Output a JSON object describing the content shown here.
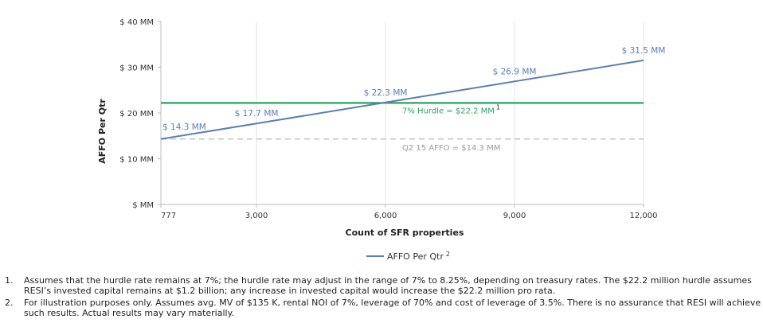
{
  "chart_data": {
    "type": "line",
    "title": "",
    "xlabel": "Count of SFR properties",
    "ylabel": "AFFO Per Qtr",
    "xlim": [
      777,
      12000
    ],
    "ylim": [
      0,
      40
    ],
    "x_ticks": [
      777,
      3000,
      6000,
      9000,
      12000
    ],
    "x_tick_labels": [
      "777",
      "3,000",
      "6,000",
      "9,000",
      "12,000"
    ],
    "y_ticks": [
      0,
      10,
      20,
      30,
      40
    ],
    "y_tick_labels": [
      "$ MM",
      "$ 10 MM",
      "$ 20 MM",
      "$ 30 MM",
      "$ 40 MM"
    ],
    "grid": "vertical",
    "series": [
      {
        "name": "AFFO Per Qtr",
        "name_superscript": "2",
        "color": "#5b7fb0",
        "x": [
          777,
          3000,
          6000,
          9000,
          12000
        ],
        "y": [
          14.3,
          17.7,
          22.3,
          26.9,
          31.5
        ],
        "labels": [
          "$ 14.3 MM",
          "$ 17.7 MM",
          "$ 22.3 MM",
          "$ 26.9 MM",
          "$ 31.5 MM"
        ]
      }
    ],
    "reference_lines": [
      {
        "name": "hurdle",
        "value": 22.2,
        "color": "#2ca25f",
        "style": "solid",
        "label": "7% Hurdle = $22.2 MM",
        "label_superscript": "1"
      },
      {
        "name": "q2-15-affo",
        "value": 14.3,
        "color": "#b8b8b8",
        "style": "dashed",
        "label": "Q2 15 AFFO  = $14.3 MM"
      }
    ],
    "legend": {
      "position": "bottom-center"
    }
  },
  "footnotes": [
    {
      "number": "1.",
      "text": "Assumes that the hurdle rate remains at 7%; the hurdle rate may adjust  in the range of 7% to 8.25%, depending on treasury rates. The $22.2 million hurdle assumes RESI’s invested capital remains at $1.2 billion; any increase in invested capital would increase the $22.2 million pro rata."
    },
    {
      "number": "2.",
      "text": "For illustration purposes only. Assumes avg. MV of $135 K, rental NOI of 7%, leverage of 70% and cost of leverage of 3.5%. There is no assurance that RESI will achieve such results. Actual results may vary materially."
    }
  ]
}
